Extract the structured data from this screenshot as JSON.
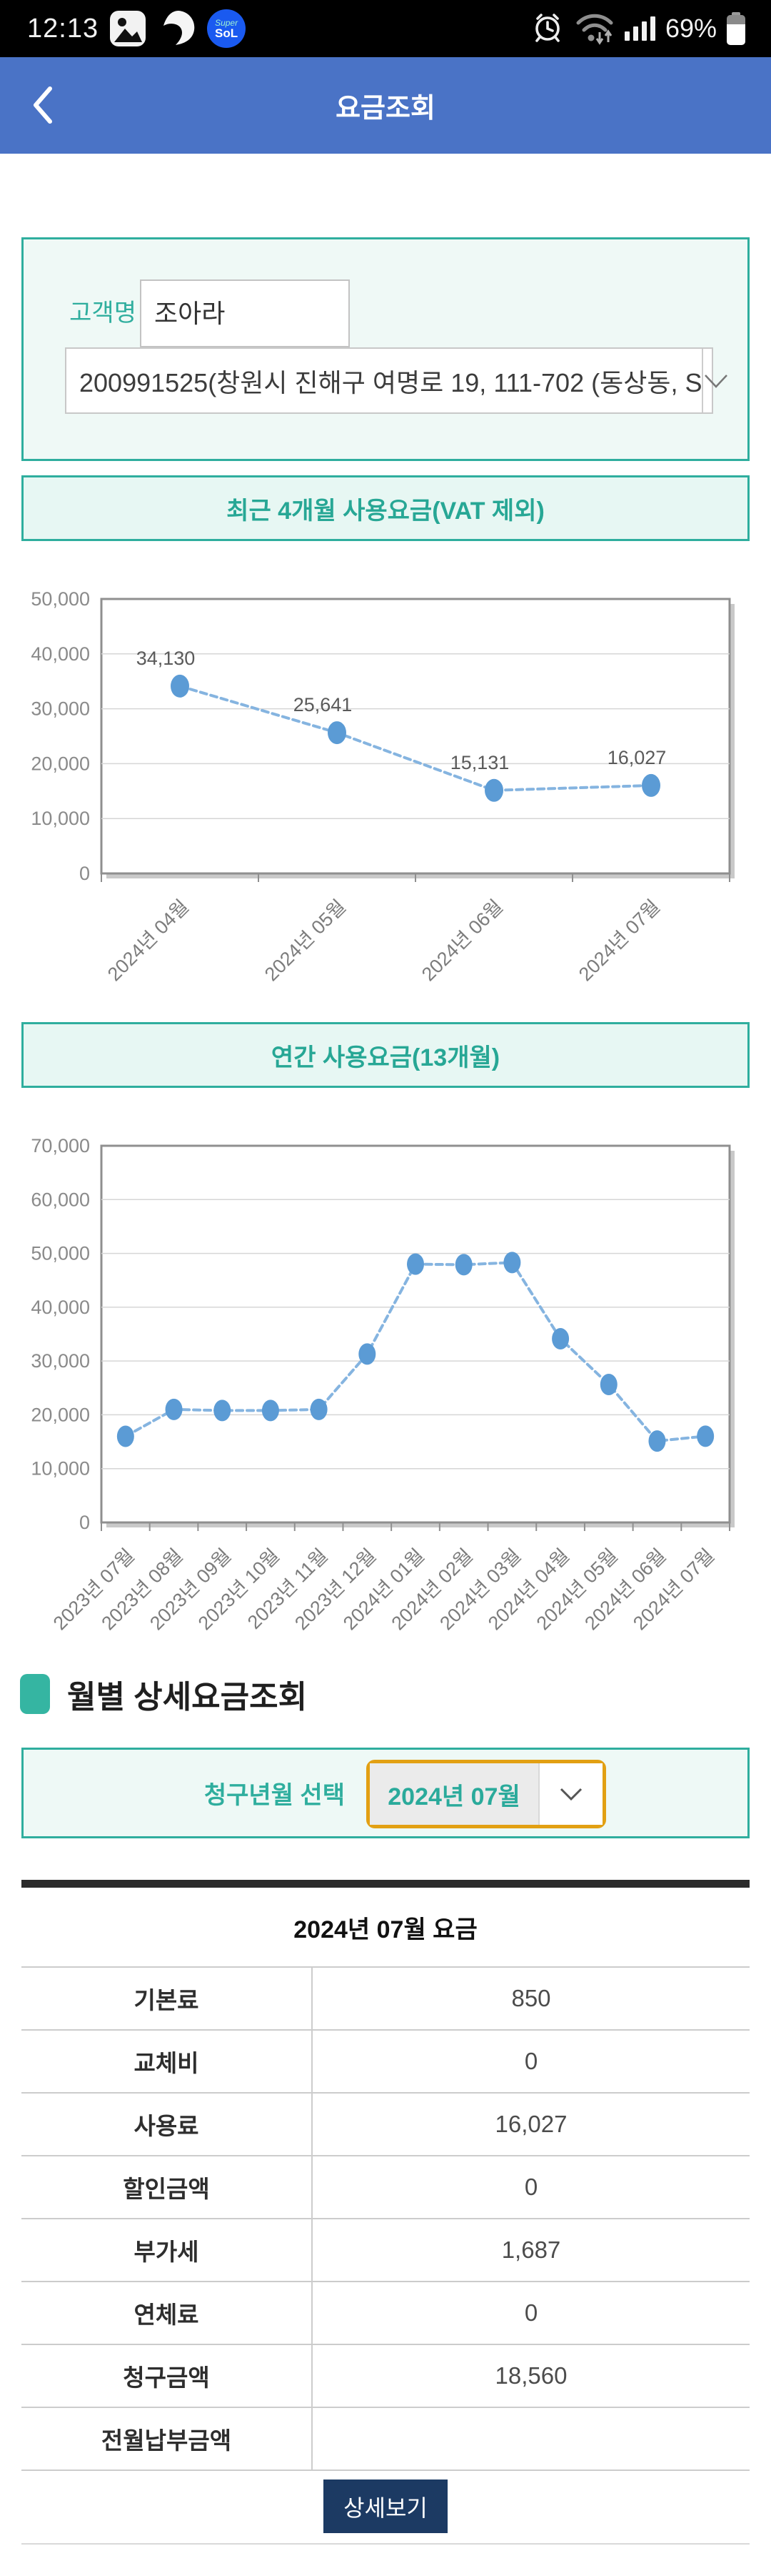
{
  "status_bar": {
    "time": "12:13",
    "battery_percent": "69%",
    "left_icons": [
      "gallery-icon",
      "swoosh-icon",
      "supersol-icon"
    ],
    "right_icons": [
      "alarm-clock-icon",
      "wifi-icon",
      "signal-bars-icon",
      "battery-icon"
    ],
    "supersol": {
      "line1": "Super",
      "line2": "SoL"
    }
  },
  "header": {
    "title": "요금조회",
    "back_icon": "chevron-left"
  },
  "customer": {
    "name_label": "고객명",
    "name_value": "조아라",
    "account_option": "200991525(창원시 진해구 여명로 19, 111-702 (동상동, S"
  },
  "sections": {
    "recent_title": "최근 4개월 사용요금(VAT 제외)",
    "yearly_title": "연간 사용요금(13개월)"
  },
  "monthly_detail": {
    "heading": "월별 상세요금조회",
    "select_label": "청구년월 선택",
    "selected_month": "2024년 07월"
  },
  "bill_table": {
    "title": "2024년 07월 요금",
    "rows": [
      {
        "label": "기본료",
        "value": "850"
      },
      {
        "label": "교체비",
        "value": "0"
      },
      {
        "label": "사용료",
        "value": "16,027"
      },
      {
        "label": "할인금액",
        "value": "0"
      },
      {
        "label": "부가세",
        "value": "1,687"
      },
      {
        "label": "연체료",
        "value": "0"
      },
      {
        "label": "청구금액",
        "value": "18,560"
      },
      {
        "label": "전월납부금액",
        "value": ""
      }
    ],
    "detail_button": "상세보기"
  },
  "chart_data": [
    {
      "type": "line",
      "title": "최근 4개월 사용요금(VAT 제외)",
      "categories": [
        "2024년 04월",
        "2024년 05월",
        "2024년 06월",
        "2024년 07월"
      ],
      "values": [
        34130,
        25641,
        15131,
        16027
      ],
      "ylim": [
        0,
        50000
      ],
      "ytick_step": 10000,
      "grid": true,
      "legend": "none",
      "data_labels": true,
      "line_color": "#85b4e0",
      "marker_color": "#5b9bd5"
    },
    {
      "type": "line",
      "title": "연간 사용요금(13개월)",
      "categories": [
        "2023년 07월",
        "2023년 08월",
        "2023년 09월",
        "2023년 10월",
        "2023년 11월",
        "2023년 12월",
        "2024년 01월",
        "2024년 02월",
        "2024년 03월",
        "2024년 04월",
        "2024년 05월",
        "2024년 06월",
        "2024년 07월"
      ],
      "values": [
        16000,
        21000,
        20800,
        20800,
        21000,
        31300,
        48000,
        47900,
        48300,
        34130,
        25641,
        15131,
        16027
      ],
      "ylim": [
        0,
        70000
      ],
      "ytick_step": 10000,
      "grid": true,
      "legend": "none",
      "data_labels": false,
      "line_color": "#85b4e0",
      "marker_color": "#5b9bd5"
    }
  ],
  "colors": {
    "header_blue": "#4a73c6",
    "accent_teal": "#2fae9e",
    "mint_bg": "#eef9f6",
    "orange_border": "#e2a013",
    "navy_button": "#1c3a63",
    "chart_line": "#85b4e0",
    "chart_marker": "#5b9bd5",
    "table_dark_bar": "#2b2b2b"
  }
}
